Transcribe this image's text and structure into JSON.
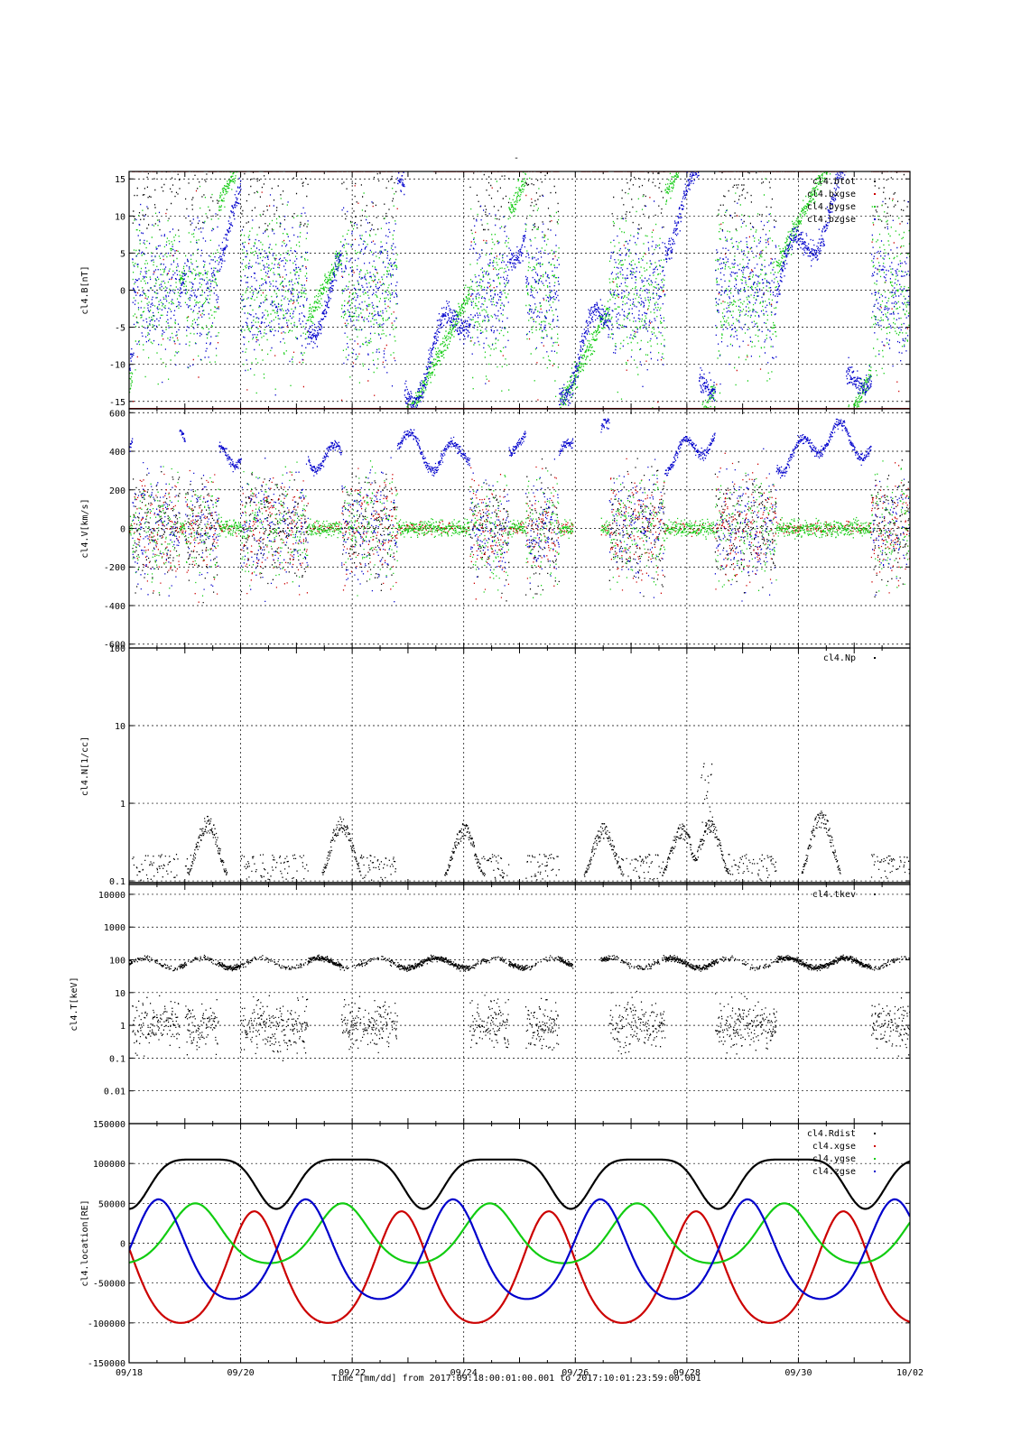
{
  "page_title": "-",
  "footer": {
    "time_label": "Time [mm/dd]  from 2017:09:18:00:01:00.001  to  2017:10:01:23:59:00.001"
  },
  "colors": {
    "black": "#000000",
    "red": "#cc0000",
    "green": "#11cc11",
    "blue": "#0000cc"
  },
  "chart_data": [
    {
      "type": "scatter",
      "ylabel": "cl4.B[nT]",
      "yscale": "linear",
      "ylim": [
        -16,
        16
      ],
      "yticks": [
        -15,
        -10,
        -5,
        0,
        5,
        10,
        15
      ],
      "ytick_labels": [
        "-15",
        "-10",
        "-5",
        "0",
        "5",
        "10",
        "15"
      ],
      "x": {
        "range_days": [
          0,
          14
        ],
        "ticks": [
          0,
          2,
          4,
          6,
          8,
          10,
          12,
          14
        ],
        "tick_labels": [
          "09/18",
          "09/20",
          "09/22",
          "09/24",
          "09/26",
          "09/28",
          "09/30",
          "10/02"
        ]
      },
      "grid": true,
      "legend_position": "top-right",
      "series": [
        {
          "name": "cl4.btot",
          "color": "#000000"
        },
        {
          "name": "cl4.bxgse",
          "color": "#cc0000"
        },
        {
          "name": "cl4.bygse",
          "color": "#11cc11"
        },
        {
          "name": "cl4.bzgse",
          "color": "#0000cc"
        }
      ]
    },
    {
      "type": "scatter",
      "ylabel": "cl4.V[km/s]",
      "yscale": "linear",
      "ylim": [
        -620,
        620
      ],
      "yticks": [
        -600,
        -400,
        -200,
        0,
        200,
        400,
        600
      ],
      "ytick_labels": [
        "-600",
        "-400",
        "-200",
        "0",
        "200",
        "400",
        "600"
      ],
      "grid": true,
      "data_gap_days": [
        7.95,
        8.45
      ],
      "series": [
        {
          "color": "#000000"
        },
        {
          "color": "#cc0000"
        },
        {
          "color": "#11cc11"
        },
        {
          "color": "#0000cc"
        }
      ]
    },
    {
      "type": "scatter",
      "ylabel": "cl4.N[1/cc]",
      "yscale": "log",
      "ylim": [
        0.09,
        100
      ],
      "yticks": [
        0.1,
        1,
        10,
        100
      ],
      "ytick_labels": [
        "0.1",
        "1",
        "10",
        "100"
      ],
      "grid": true,
      "legend_position": "top-right",
      "series": [
        {
          "name": "cl4.Np",
          "color": "#000000"
        }
      ]
    },
    {
      "type": "scatter",
      "ylabel": "cl4.T[keV]",
      "yscale": "log",
      "ylim": [
        0.001,
        20000
      ],
      "yticks": [
        0.01,
        0.1,
        1,
        10,
        100,
        1000,
        10000
      ],
      "ytick_labels": [
        "0.01",
        "0.1",
        "1",
        "10",
        "100",
        "1000",
        "10000"
      ],
      "grid": true,
      "legend_position": "top-right",
      "series": [
        {
          "name": "cl4.tkev",
          "color": "#000000"
        }
      ]
    },
    {
      "type": "line",
      "ylabel": "cl4.location[RE]",
      "yscale": "linear",
      "ylim": [
        -150000,
        150000
      ],
      "yticks": [
        -150000,
        -100000,
        -50000,
        0,
        50000,
        100000,
        150000
      ],
      "ytick_labels": [
        "-150000",
        "-100000",
        "-50000",
        "0",
        "50000",
        "100000",
        "150000"
      ],
      "grid": true,
      "legend_position": "top-right",
      "orbit_period_days": 2.64,
      "series": [
        {
          "name": "cl4.Rdist",
          "color": "#000000",
          "max": 105000,
          "min": 43000
        },
        {
          "name": "cl4.xgse",
          "color": "#cc0000",
          "max": 40000,
          "min": -100000
        },
        {
          "name": "cl4.ygse",
          "color": "#11cc11",
          "max": 50000,
          "min": -25000
        },
        {
          "name": "cl4.zgse",
          "color": "#0000cc",
          "max": 55000,
          "min": -70000
        }
      ]
    }
  ]
}
